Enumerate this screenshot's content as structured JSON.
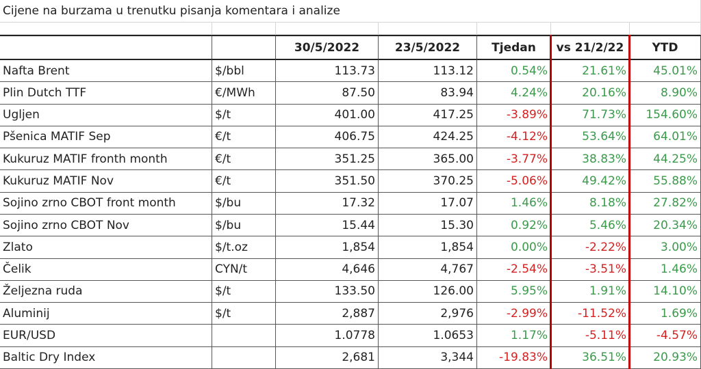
{
  "title": "Cijene na burzama u trenutku pisanja komentara i analize",
  "table": {
    "header": [
      "30/5/2022",
      "23/5/2022",
      "Tjedan",
      "vs 21/2/22",
      "YTD"
    ],
    "rows": [
      [
        "Nafta Brent",
        "$/bbl",
        "113.73",
        "113.12",
        "0.54%",
        "21.61%",
        "45.01%"
      ],
      [
        "Plin Dutch TTF",
        "€/MWh",
        "87.50",
        "83.94",
        "4.24%",
        "20.16%",
        "8.90%"
      ],
      [
        "Ugljen",
        "$/t",
        "401.00",
        "417.25",
        "-3.89%",
        "71.73%",
        "154.60%"
      ],
      [
        "Pšenica MATIF Sep",
        "€/t",
        "406.75",
        "424.25",
        "-4.12%",
        "53.64%",
        "64.01%"
      ],
      [
        "Kukuruz MATIF fronth month",
        "€/t",
        "351.25",
        "365.00",
        "-3.77%",
        "38.83%",
        "44.25%"
      ],
      [
        "Kukuruz MATIF Nov",
        "€/t",
        "351.50",
        "370.25",
        "-5.06%",
        "49.42%",
        "55.88%"
      ],
      [
        "Sojino zrno CBOT front month",
        "$/bu",
        "17.32",
        "17.07",
        "1.46%",
        "8.18%",
        "27.82%"
      ],
      [
        "Sojino zrno CBOT Nov",
        "$/bu",
        "15.44",
        "15.30",
        "0.92%",
        "5.46%",
        "20.34%"
      ],
      [
        "Zlato",
        "$/t.oz",
        "1,854",
        "1,854",
        "0.00%",
        "-2.22%",
        "3.00%"
      ],
      [
        "Čelik",
        "CYN/t",
        "4,646",
        "4,767",
        "-2.54%",
        "-3.51%",
        "1.46%"
      ],
      [
        "Željezna ruda",
        "$/t",
        "133.50",
        "126.00",
        "5.95%",
        "1.91%",
        "14.10%"
      ],
      [
        "Aluminij",
        "$/t",
        "2,887",
        "2,976",
        "-2.99%",
        "-11.52%",
        "1.69%"
      ],
      [
        "EUR/USD",
        null,
        "1.0778",
        "1.0653",
        "1.17%",
        "-5.11%",
        "-4.57%"
      ],
      [
        "Baltic Dry Index",
        null,
        "2,681",
        "3,344",
        "-19.83%",
        "36.51%",
        "20.93%"
      ]
    ]
  }
}
